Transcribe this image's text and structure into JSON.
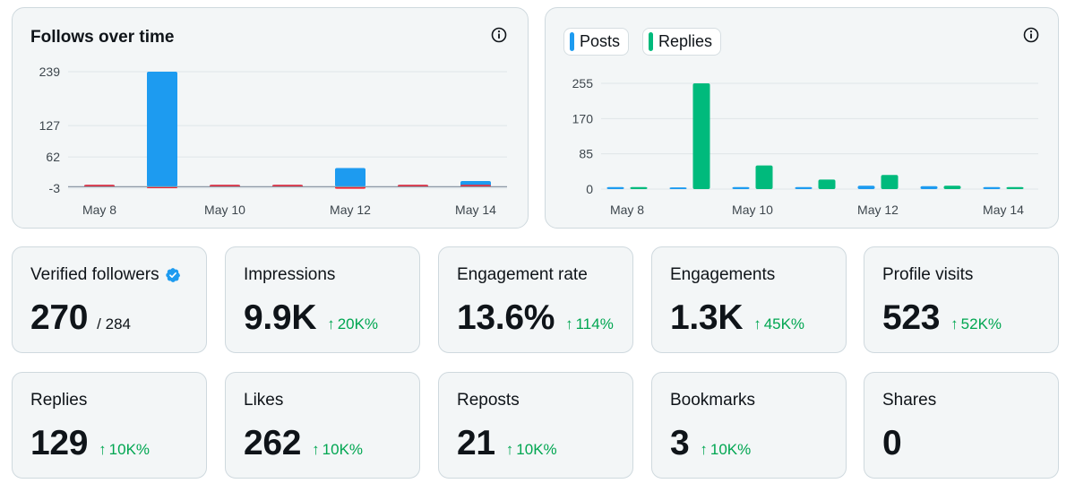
{
  "follows_chart": {
    "title": "Follows over time",
    "chart_data": {
      "type": "bar",
      "categories": [
        "May 8",
        "May 9",
        "May 10",
        "May 11",
        "May 12",
        "May 13",
        "May 14"
      ],
      "series": [
        {
          "values": [
            0,
            239,
            2,
            1,
            39,
            2,
            12
          ],
          "color": "#1d9bf0"
        },
        {
          "values": [
            0,
            -3,
            0,
            0,
            -1,
            0,
            0
          ],
          "color": "#f4212e"
        }
      ],
      "x_tick_labels": [
        "May 8",
        "May 10",
        "May 12",
        "May 14"
      ],
      "y_ticks": [
        "239",
        "127",
        "62",
        "-3"
      ],
      "ylim": [
        -3,
        239
      ],
      "grid": true
    }
  },
  "activity_chart": {
    "legend": [
      {
        "label": "Posts",
        "color": "#1d9bf0"
      },
      {
        "label": "Replies",
        "color": "#00ba7c"
      }
    ],
    "chart_data": {
      "type": "bar",
      "categories": [
        "May 8",
        "May 9",
        "May 10",
        "May 11",
        "May 12",
        "May 13",
        "May 14"
      ],
      "series": [
        {
          "name": "Posts",
          "values": [
            0,
            4,
            1,
            1,
            8,
            7,
            1
          ],
          "color": "#1d9bf0"
        },
        {
          "name": "Replies",
          "values": [
            0,
            255,
            57,
            23,
            34,
            8,
            1
          ],
          "color": "#00ba7c"
        }
      ],
      "x_tick_labels": [
        "May 8",
        "May 10",
        "May 12",
        "May 14"
      ],
      "y_ticks": [
        "255",
        "170",
        "85",
        "0"
      ],
      "ylim": [
        0,
        255
      ],
      "grid": true
    }
  },
  "metrics": [
    {
      "label": "Verified followers",
      "value": "270",
      "sub": "/ 284",
      "delta": "",
      "verified": true
    },
    {
      "label": "Impressions",
      "value": "9.9K",
      "sub": "",
      "delta": "20K%"
    },
    {
      "label": "Engagement rate",
      "value": "13.6%",
      "sub": "",
      "delta": "114%"
    },
    {
      "label": "Engagements",
      "value": "1.3K",
      "sub": "",
      "delta": "45K%"
    },
    {
      "label": "Profile visits",
      "value": "523",
      "sub": "",
      "delta": "52K%"
    },
    {
      "label": "Replies",
      "value": "129",
      "sub": "",
      "delta": "10K%"
    },
    {
      "label": "Likes",
      "value": "262",
      "sub": "",
      "delta": "10K%"
    },
    {
      "label": "Reposts",
      "value": "21",
      "sub": "",
      "delta": "10K%"
    },
    {
      "label": "Bookmarks",
      "value": "3",
      "sub": "",
      "delta": "10K%"
    },
    {
      "label": "Shares",
      "value": "0",
      "sub": "",
      "delta": ""
    }
  ],
  "delta_arrow": "↑",
  "colors": {
    "positive": "#00a651",
    "grid": "#dfe5e8",
    "axis": "#8b98a5",
    "verified": "#1d9bf0"
  },
  "icons": {
    "info": "info-icon",
    "verified": "verified-badge-icon",
    "delta": "arrow-up-icon"
  }
}
